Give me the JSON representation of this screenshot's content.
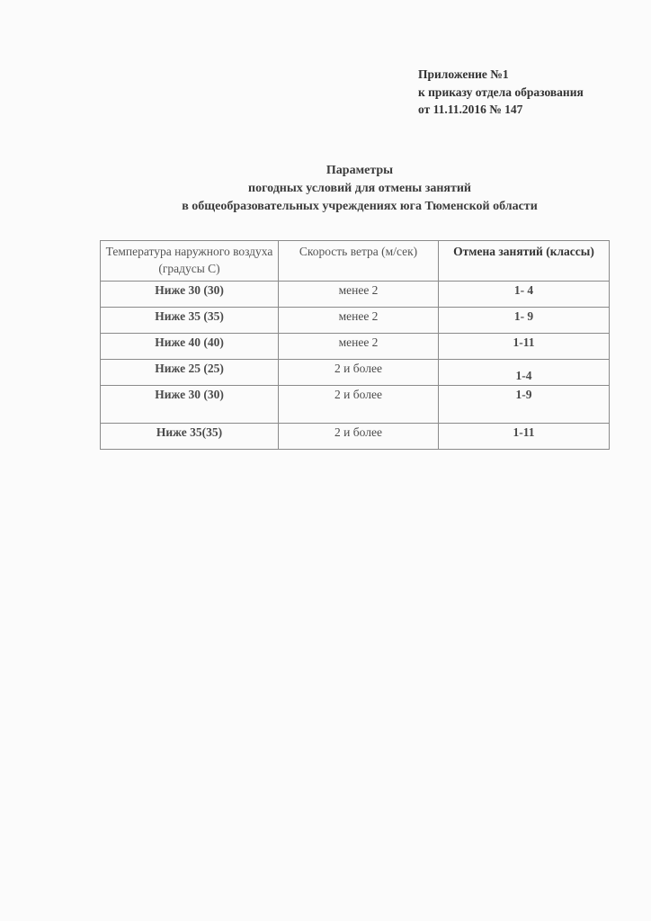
{
  "appendix": {
    "line1": "Приложение №1",
    "line2": "к приказу отдела образования",
    "line3": "от 11.11.2016 № 147"
  },
  "title": {
    "line1": "Параметры",
    "line2": "погодных условий для отмены занятий",
    "line3": "в общеобразовательных учреждениях юга Тюменской области"
  },
  "table": {
    "headers": [
      "Температура наружного воздуха (градусы С)",
      "Скорость ветра (м/сек)",
      "Отмена занятий (классы)"
    ],
    "rows": [
      [
        "Ниже 30 (30)",
        "менее 2",
        "1- 4"
      ],
      [
        "Ниже 35 (35)",
        "менее 2",
        "1- 9"
      ],
      [
        "Ниже 40 (40)",
        "менее 2",
        "1-11"
      ],
      [
        "Ниже 25 (25)",
        "2 и более",
        "1-4"
      ],
      [
        "Ниже 30 (30)",
        "2 и более",
        "1-9"
      ],
      [
        "Ниже 35(35)",
        "2 и более",
        "1-11"
      ]
    ]
  }
}
